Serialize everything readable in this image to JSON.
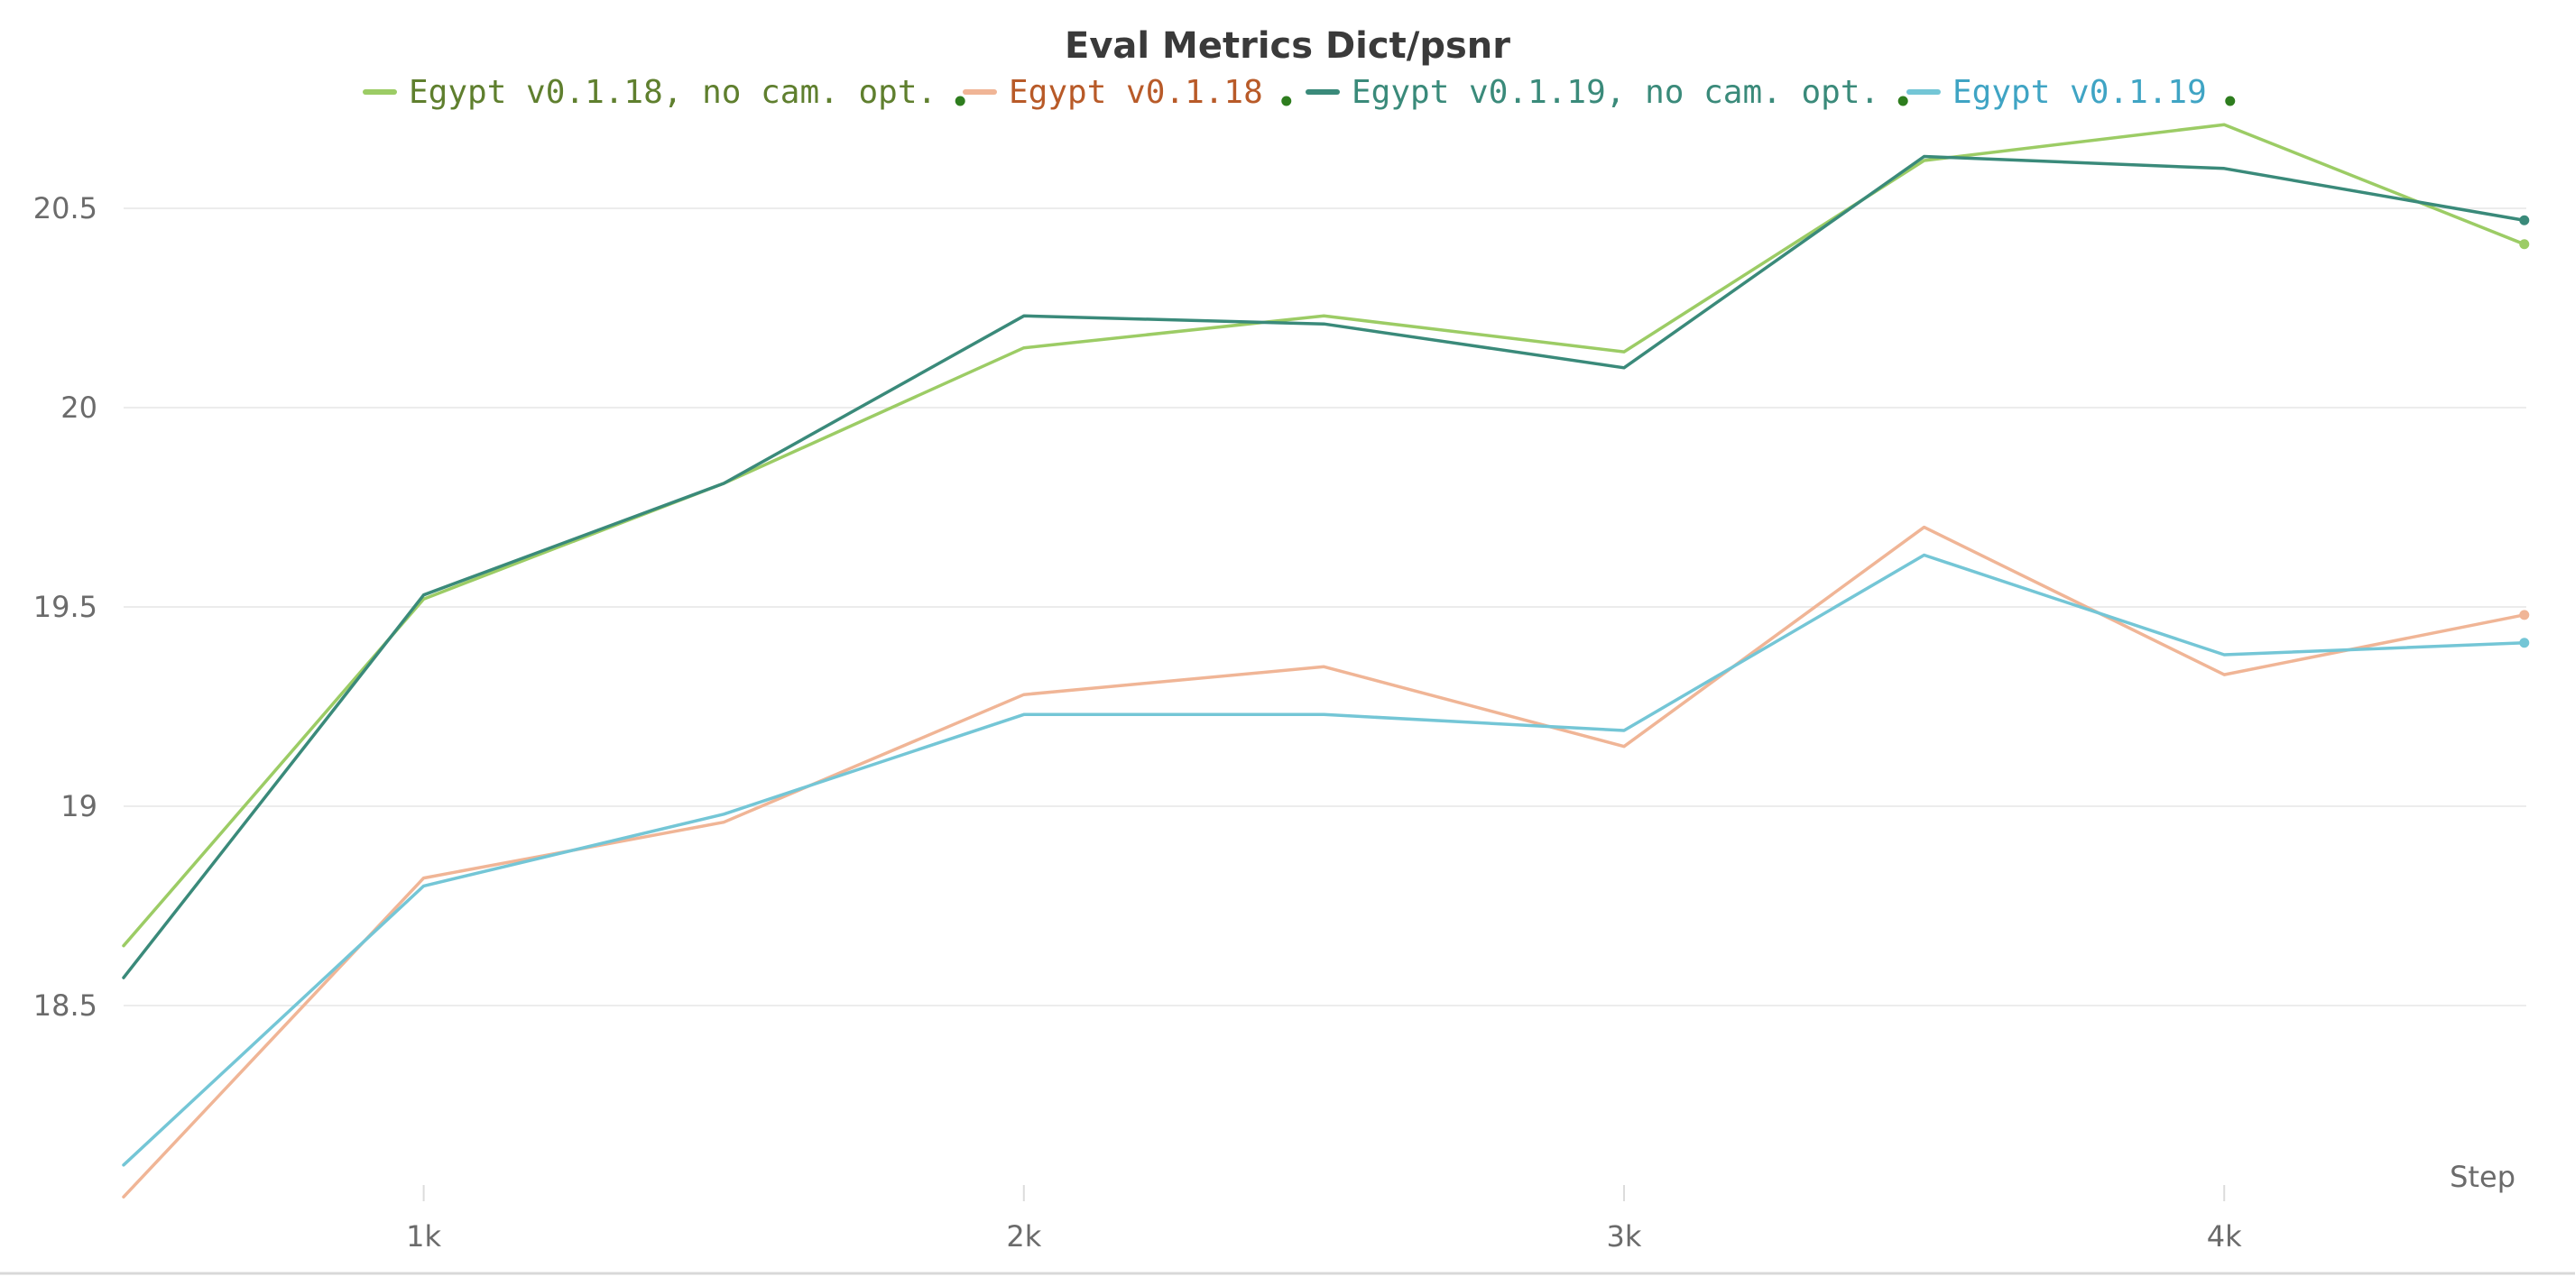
{
  "chart_data": {
    "type": "line",
    "title": "Eval Metrics Dict/psnr",
    "xlabel": "Step",
    "ylabel": "",
    "xlim": [
      0,
      4000
    ],
    "ylim": [
      18.0,
      20.75
    ],
    "x_ticks": [
      {
        "value": 1000,
        "label": "1k"
      },
      {
        "value": 2000,
        "label": "2k"
      },
      {
        "value": 3000,
        "label": "3k"
      },
      {
        "value": 4000,
        "label": "4k"
      }
    ],
    "y_ticks": [
      {
        "value": 18.5,
        "label": "18.5"
      },
      {
        "value": 19.0,
        "label": "19"
      },
      {
        "value": 19.5,
        "label": "19.5"
      },
      {
        "value": 20.0,
        "label": "20"
      },
      {
        "value": 20.5,
        "label": "20.5"
      }
    ],
    "grid": true,
    "legend_position": "top",
    "x": [
      500,
      1000,
      1500,
      2000,
      2500,
      3000,
      3500,
      4000,
      4500
    ],
    "series": [
      {
        "name": "Egypt v0.1.18, no cam. opt.",
        "color": "#9ccc65",
        "label_color": "#5f7f2e",
        "values": [
          18.65,
          19.52,
          19.81,
          20.15,
          20.23,
          20.14,
          20.62,
          20.71,
          20.41
        ]
      },
      {
        "name": "Egypt v0.1.18",
        "color": "#f0b596",
        "label_color": "#b85a28",
        "values": [
          18.02,
          18.82,
          18.96,
          19.28,
          19.35,
          19.15,
          19.7,
          19.33,
          19.48
        ]
      },
      {
        "name": "Egypt v0.1.19, no cam. opt.",
        "color": "#3a8a7a",
        "label_color": "#3a8a7a",
        "values": [
          18.57,
          19.53,
          19.81,
          20.23,
          20.21,
          20.1,
          20.63,
          20.6,
          20.47
        ]
      },
      {
        "name": "Egypt v0.1.19",
        "color": "#74c6d6",
        "label_color": "#3fa4c4",
        "values": [
          18.1,
          18.8,
          18.98,
          19.23,
          19.23,
          19.19,
          19.63,
          19.38,
          19.41
        ]
      }
    ],
    "legend_dot_color": "#2e7d1e"
  }
}
